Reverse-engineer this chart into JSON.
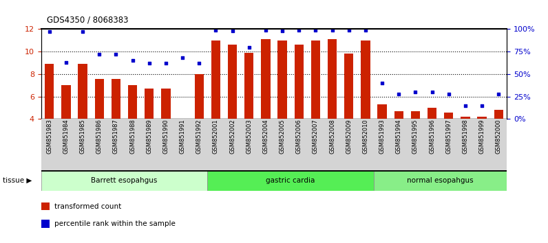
{
  "title": "GDS4350 / 8068383",
  "samples": [
    "GSM851983",
    "GSM851984",
    "GSM851985",
    "GSM851986",
    "GSM851987",
    "GSM851988",
    "GSM851989",
    "GSM851990",
    "GSM851991",
    "GSM851992",
    "GSM852001",
    "GSM852002",
    "GSM852003",
    "GSM852004",
    "GSM852005",
    "GSM852006",
    "GSM852007",
    "GSM852008",
    "GSM852009",
    "GSM852010",
    "GSM851993",
    "GSM851994",
    "GSM851995",
    "GSM851996",
    "GSM851997",
    "GSM851998",
    "GSM851999",
    "GSM852000"
  ],
  "bar_values": [
    8.9,
    7.0,
    8.9,
    7.6,
    7.6,
    7.0,
    6.7,
    6.7,
    4.0,
    8.0,
    11.0,
    10.6,
    9.9,
    11.1,
    11.0,
    10.6,
    11.0,
    11.1,
    9.8,
    11.0,
    5.3,
    4.7,
    4.7,
    5.0,
    4.6,
    4.2,
    4.2,
    4.8
  ],
  "percentile_values": [
    97,
    63,
    97,
    72,
    72,
    65,
    62,
    62,
    68,
    62,
    99,
    98,
    80,
    99,
    98,
    99,
    99,
    99,
    99,
    99,
    40,
    28,
    30,
    30,
    28,
    15,
    15,
    28
  ],
  "groups": [
    {
      "label": "Barrett esopahgus",
      "start": 0,
      "end": 10,
      "color": "#ccffcc"
    },
    {
      "label": "gastric cardia",
      "start": 10,
      "end": 20,
      "color": "#55ee55"
    },
    {
      "label": "normal esopahgus",
      "start": 20,
      "end": 28,
      "color": "#88ee88"
    }
  ],
  "bar_color": "#cc2200",
  "dot_color": "#0000cc",
  "bar_bottom": 4.0,
  "ylim_left": [
    4,
    12
  ],
  "ylim_right": [
    0,
    100
  ],
  "yticks_left": [
    4,
    6,
    8,
    10,
    12
  ],
  "yticks_right": [
    0,
    25,
    50,
    75,
    100
  ],
  "ytick_labels_right": [
    "0%",
    "25%",
    "50%",
    "75%",
    "100%"
  ],
  "grid_values": [
    6,
    8,
    10
  ],
  "bar_color_hex": "#cc2200",
  "dot_color_hex": "#0000cc",
  "legend_items": [
    {
      "color": "#cc2200",
      "label": "transformed count"
    },
    {
      "color": "#0000cc",
      "label": "percentile rank within the sample"
    }
  ],
  "tissue_label": "tissue ▶"
}
